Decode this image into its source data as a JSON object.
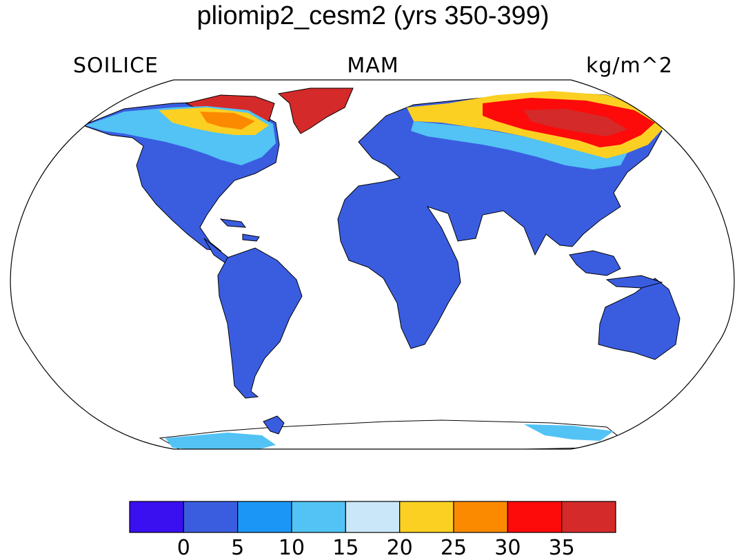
{
  "title": "pliomip2_cesm2 (yrs 350-399)",
  "subtitles": {
    "left": "SOILICE",
    "center": "MAM",
    "right": "kg/m^2"
  },
  "colorbar": {
    "colors": [
      "#3a0ff0",
      "#3a5de0",
      "#1b96f7",
      "#52c3f4",
      "#c9e7f8",
      "#fcd022",
      "#fc8a00",
      "#fd0a0a",
      "#d42a2a"
    ],
    "labels": [
      "0",
      "5",
      "10",
      "15",
      "20",
      "25",
      "30",
      "35"
    ]
  },
  "colors": {
    "land_low": "#3a5de0",
    "coast": "#000000",
    "ocean": "#ffffff"
  }
}
